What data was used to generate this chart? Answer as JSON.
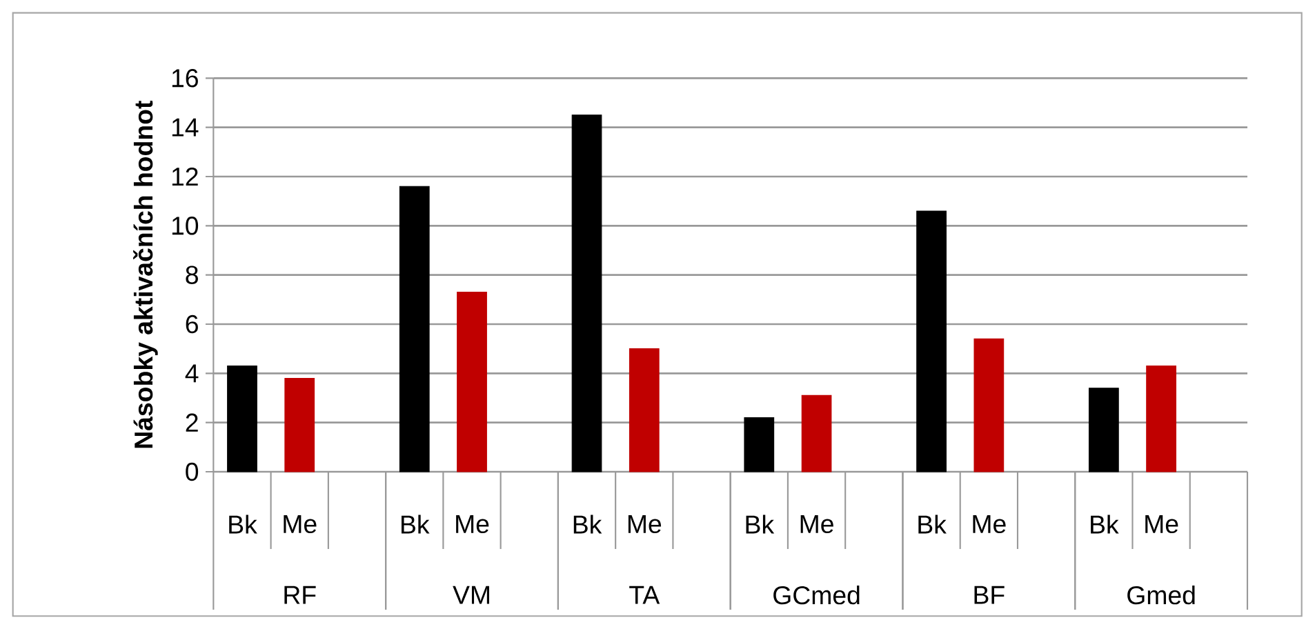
{
  "chart_data": {
    "type": "bar",
    "ylabel": "Násobky aktivačních hodnot",
    "categories": [
      "RF",
      "VM",
      "TA",
      "GCmed",
      "BF",
      "Gmed"
    ],
    "series": [
      {
        "name": "Bk",
        "color": "#000000",
        "values": [
          4.3,
          11.6,
          14.5,
          2.2,
          10.6,
          3.4
        ]
      },
      {
        "name": "Me",
        "color": "#c00000",
        "values": [
          3.8,
          7.3,
          5.0,
          3.1,
          5.4,
          4.3
        ]
      }
    ],
    "ylim": [
      0,
      16
    ],
    "yticks": [
      0,
      2,
      4,
      6,
      8,
      10,
      12,
      14,
      16
    ],
    "grid": "y"
  }
}
